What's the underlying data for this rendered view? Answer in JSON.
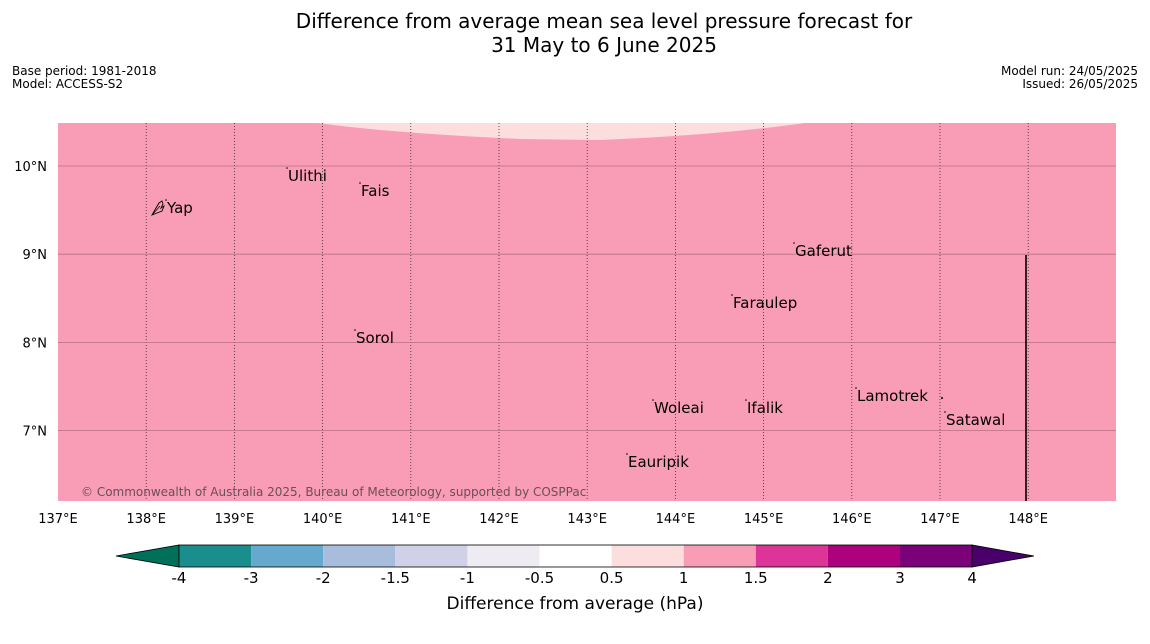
{
  "title": {
    "line1": "Difference from average mean sea level pressure forecast for",
    "line2": "31 May to 6 June 2025"
  },
  "meta_left": {
    "base_period": "Base period: 1981-2018",
    "model": "Model: ACCESS-S2"
  },
  "meta_right": {
    "model_run": "Model run: 24/05/2025",
    "issued": "Issued: 26/05/2025"
  },
  "map": {
    "background_color": "#f99db6",
    "upper_band_color": "#fcdede",
    "longitude_labels": [
      "137°E",
      "138°E",
      "139°E",
      "140°E",
      "141°E",
      "142°E",
      "143°E",
      "144°E",
      "145°E",
      "146°E",
      "147°E",
      "148°E"
    ],
    "longitudes": [
      137,
      138,
      139,
      140,
      141,
      142,
      143,
      144,
      145,
      146,
      147,
      148
    ],
    "latitude_labels": [
      "10°N",
      "9°N",
      "8°N",
      "7°N"
    ],
    "latitudes": [
      10,
      9,
      8,
      7
    ],
    "extent": {
      "lon_min": 137,
      "lon_max": 149,
      "lat_min": 6.2,
      "lat_max": 10.5
    },
    "places": [
      {
        "name": "Yap",
        "lon": 138.2,
        "lat": 9.5
      },
      {
        "name": "Ulithi",
        "lon": 139.8,
        "lat": 9.9
      },
      {
        "name": "Fais",
        "lon": 140.5,
        "lat": 9.75
      },
      {
        "name": "Gaferut",
        "lon": 145.38,
        "lat": 9.25
      },
      {
        "name": "Faraulep",
        "lon": 144.75,
        "lat": 8.55
      },
      {
        "name": "Sorol",
        "lon": 140.4,
        "lat": 8.1
      },
      {
        "name": "Lamotrek",
        "lon": 146.05,
        "lat": 7.5
      },
      {
        "name": "Woleai",
        "lon": 143.9,
        "lat": 7.35
      },
      {
        "name": "Ifalik",
        "lon": 144.45,
        "lat": 7.25
      },
      {
        "name": "Satawal",
        "lon": 147.1,
        "lat": 7.35
      },
      {
        "name": "Eauripik",
        "lon": 143.05,
        "lat": 6.7
      }
    ],
    "copyright": "© Commonwealth of Australia 2025, Bureau of Meteorology, supported by COSPPac"
  },
  "colorbar": {
    "label": "Difference from average (hPa)",
    "ticks": [
      "-4",
      "-3",
      "-2",
      "-1.5",
      "-1",
      "-0.5",
      "0.5",
      "1",
      "1.5",
      "2",
      "3",
      "4"
    ],
    "colors": [
      "#1a8d8d",
      "#66a9cf",
      "#a8bddb",
      "#d0d1e6",
      "#efebf2",
      "#ffffff",
      "#fcdede",
      "#f99db6",
      "#dd3597",
      "#ad017e",
      "#7a0177"
    ],
    "under_color": "#00705a",
    "over_color": "#49006a"
  }
}
